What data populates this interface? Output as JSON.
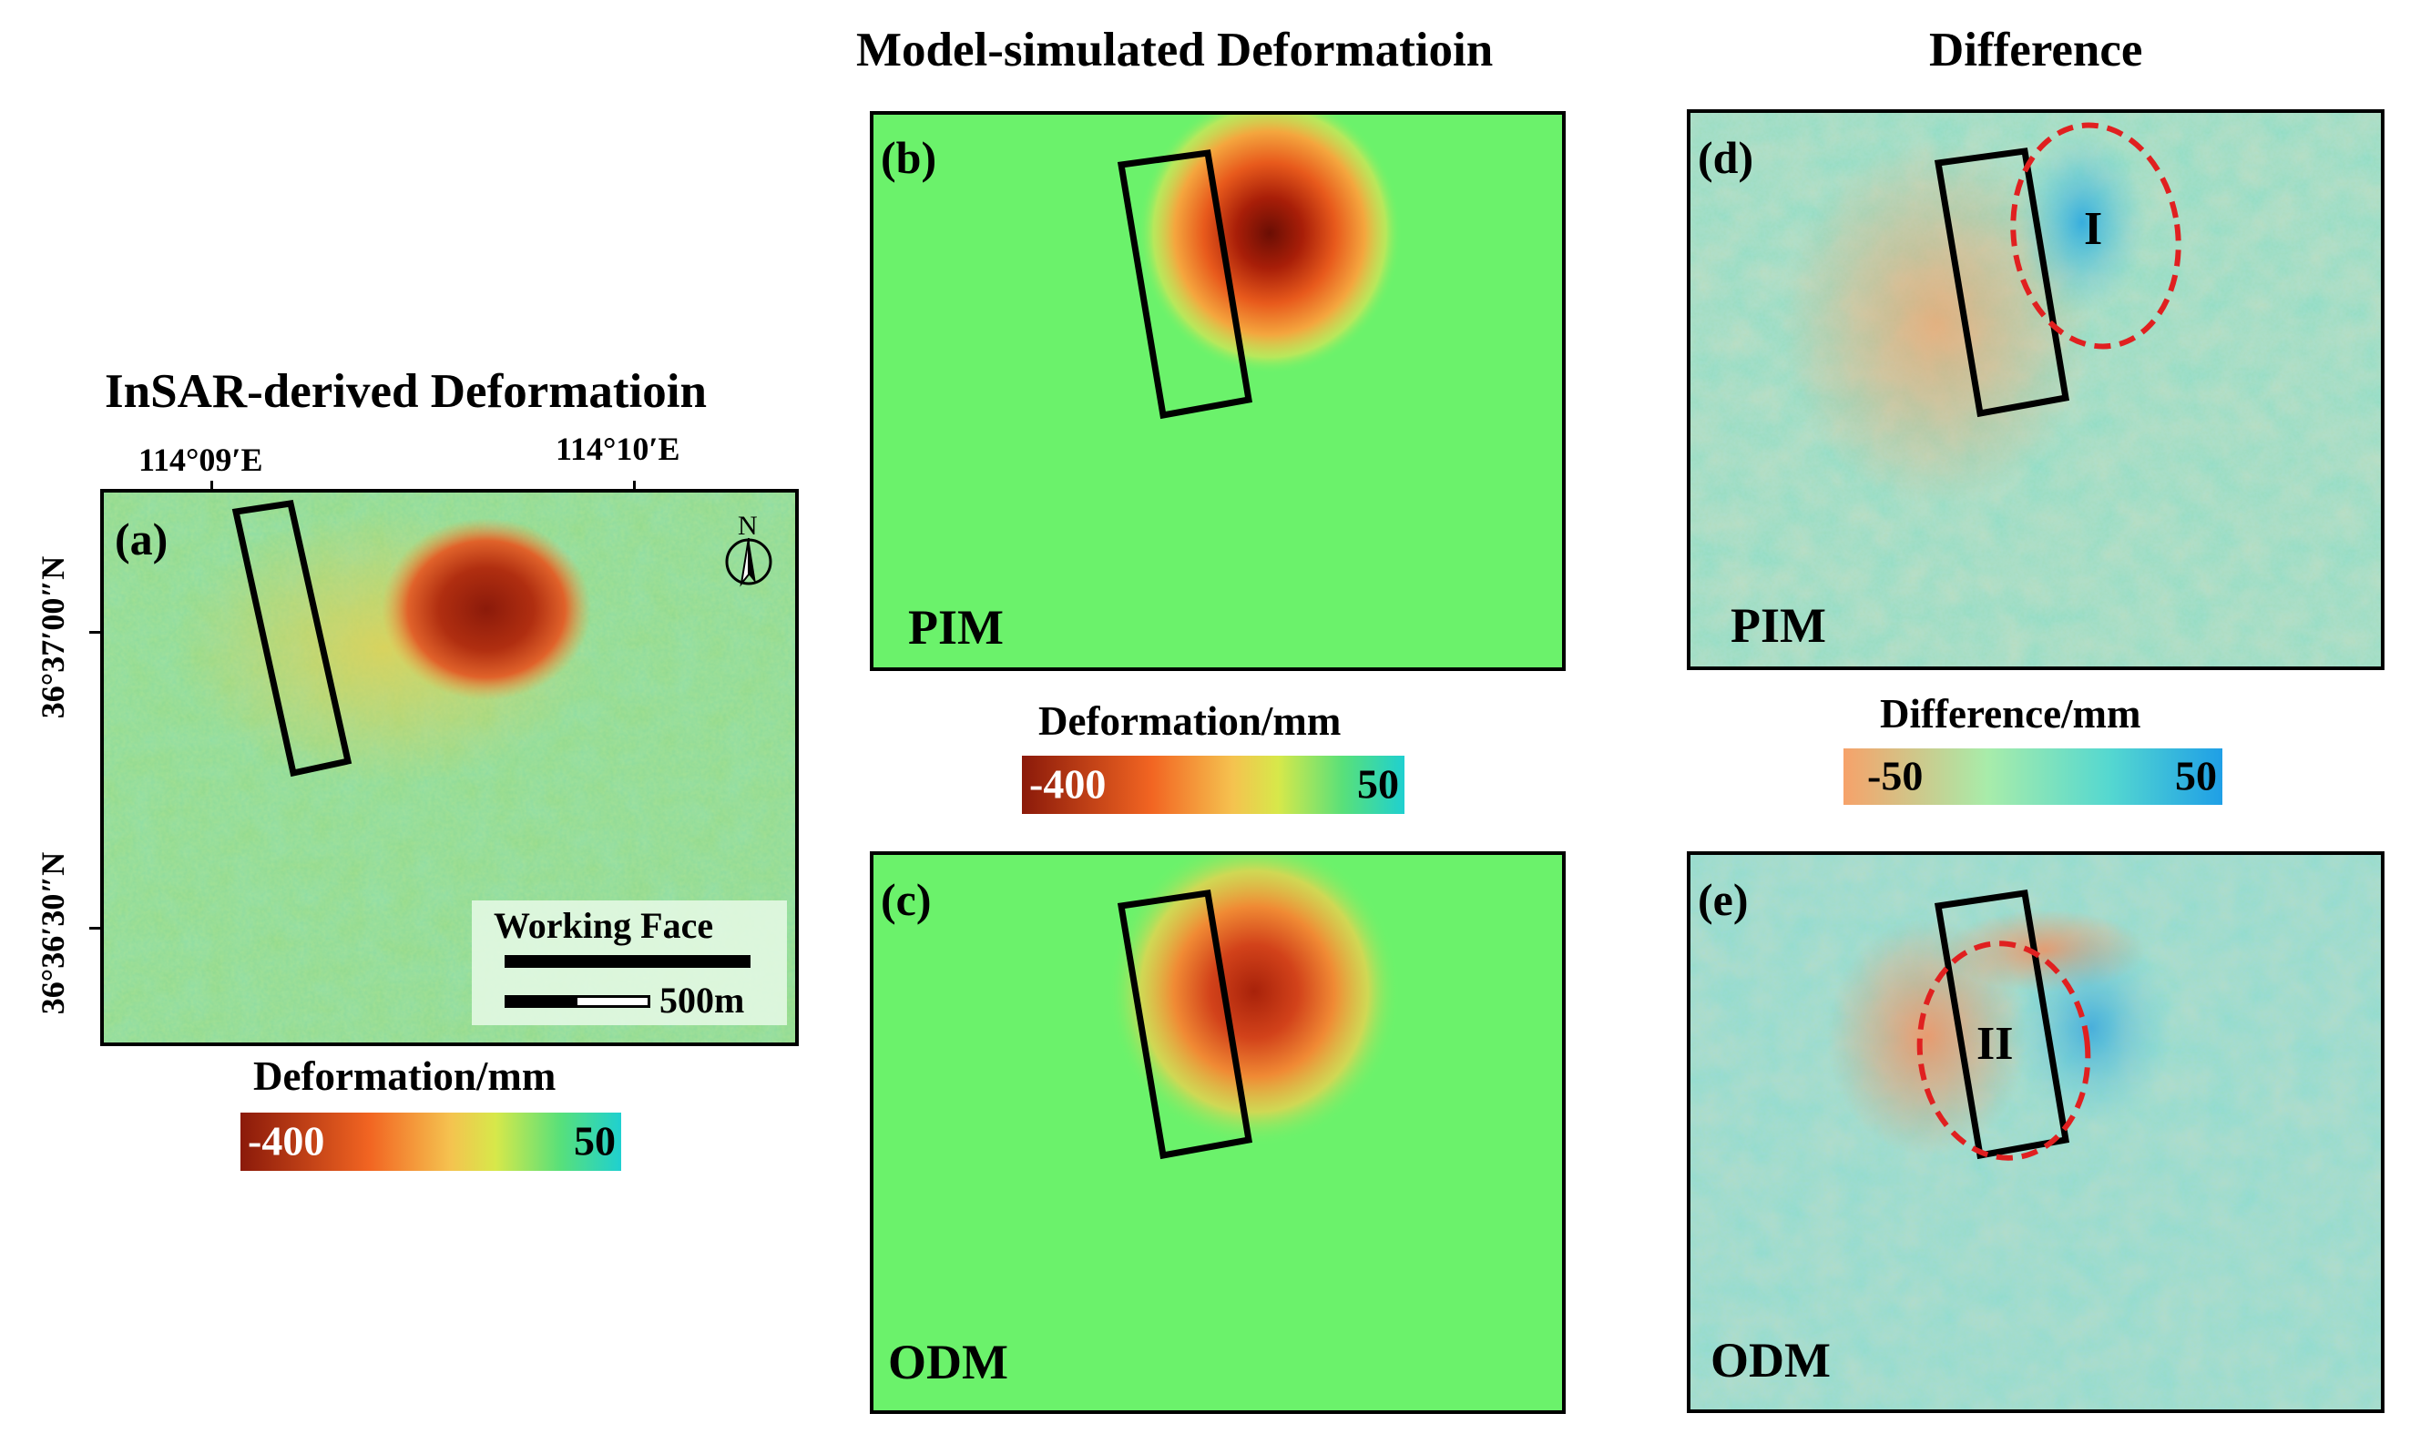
{
  "titles": {
    "insar": "InSAR-derived Deformatioin",
    "model": "Model-simulated Deformatioin",
    "difference": "Difference"
  },
  "panel_a": {
    "label": "(a)",
    "lon_ticks": [
      "114°09′E",
      "114°10′E"
    ],
    "lat_ticks": [
      "36°37′00″N",
      "36°36′30″N"
    ],
    "north_label": "N",
    "legend_title": "Working Face",
    "scale_label": "500m"
  },
  "panel_b": {
    "label": "(b)",
    "model": "PIM"
  },
  "panel_c": {
    "label": "(c)",
    "model": "ODM"
  },
  "panel_d": {
    "label": "(d)",
    "model": "PIM",
    "region": "I"
  },
  "panel_e": {
    "label": "(e)",
    "model": "ODM",
    "region": "II"
  },
  "colorbars": {
    "deformation": {
      "title": "Deformation/mm",
      "min": "-400",
      "max": "50",
      "colors": [
        "#8b1a0a",
        "#f26522",
        "#f5c24f",
        "#d7e84a",
        "#58e07a",
        "#1fd0d0"
      ]
    },
    "difference": {
      "title": "Difference/mm",
      "min": "-50",
      "max": "50",
      "colors": [
        "#f6a26a",
        "#a8ecaa",
        "#55d8d0",
        "#1f9fe6"
      ]
    }
  },
  "colors": {
    "insar_background": "#8fd88a",
    "model_background": "#6bf26b",
    "difference_background": "#8ddcc0",
    "subsidence_core": "#8b1a0a",
    "region_outline": "#e02020"
  }
}
